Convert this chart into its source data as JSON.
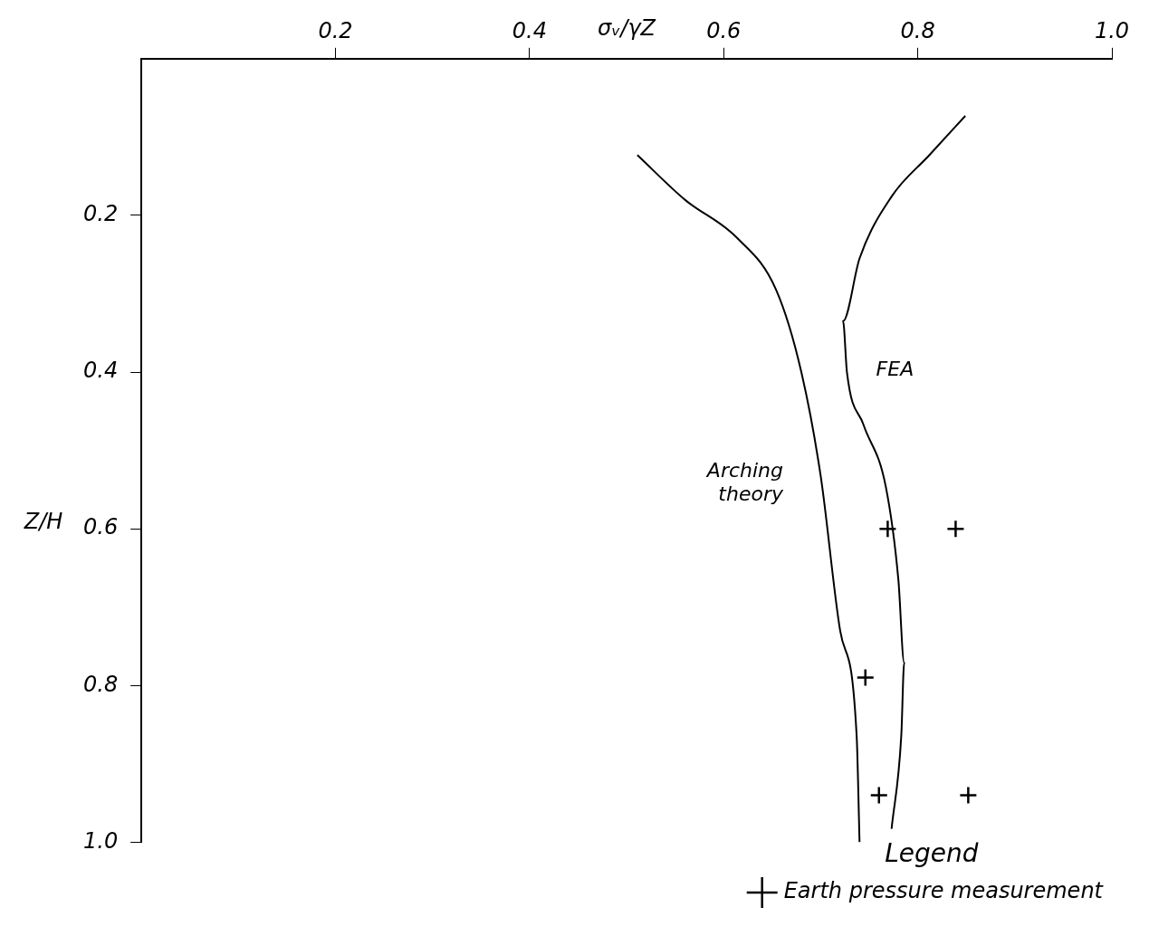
{
  "chart_data": {
    "type": "line",
    "xlabel": "σᵥ/γZ",
    "ylabel": "Z/H",
    "legend_title": "Legend",
    "legend": "bottom right",
    "grid": false,
    "xlim": [
      0,
      1
    ],
    "ylim": [
      1,
      0
    ],
    "xticks": [
      {
        "value": 0.2,
        "label": "0.2"
      },
      {
        "value": 0.4,
        "label": "0.4"
      },
      {
        "value": 0.6,
        "label": "0.6"
      },
      {
        "value": 0.8,
        "label": "0.8"
      },
      {
        "value": 1.0,
        "label": "1.0"
      }
    ],
    "yticks": [
      {
        "value": 0.2,
        "label": "0.2"
      },
      {
        "value": 0.4,
        "label": "0.4"
      },
      {
        "value": 0.6,
        "label": "0.6"
      },
      {
        "value": 0.8,
        "label": "0.8"
      },
      {
        "value": 1.0,
        "label": "1.0"
      }
    ],
    "series": [
      {
        "type": "line",
        "name": "Arching theory",
        "color": "#000000",
        "marker": "none",
        "x": [
          0.511,
          0.56,
          0.614,
          0.654,
          0.68,
          0.7,
          0.72,
          0.737,
          0.74
        ],
        "values": [
          0.123,
          0.18,
          0.229,
          0.295,
          0.4,
          0.533,
          0.73,
          0.864,
          1.0
        ]
      },
      {
        "type": "line",
        "name": "FEA",
        "color": "#000000",
        "marker": "none",
        "x": [
          0.849,
          0.812,
          0.773,
          0.74,
          0.723,
          0.727,
          0.744,
          0.767,
          0.78,
          0.786,
          0.783,
          0.773
        ],
        "values": [
          0.073,
          0.123,
          0.176,
          0.255,
          0.335,
          0.4,
          0.467,
          0.546,
          0.665,
          0.771,
          0.864,
          0.983
        ]
      },
      {
        "type": "scatter",
        "name": "Earth pressure measurement",
        "color": "#000000",
        "marker": "cross",
        "x": [
          0.769,
          0.839,
          0.746,
          0.76,
          0.852
        ],
        "values": [
          0.6,
          0.6,
          0.79,
          0.94,
          0.94
        ]
      }
    ]
  }
}
